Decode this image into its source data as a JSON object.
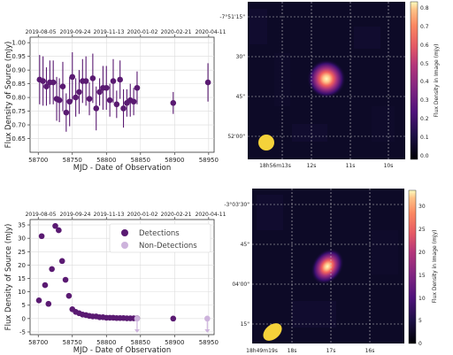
{
  "colors": {
    "detection": "#5a1a72",
    "nondetection": "#cdb3dc",
    "grid": "#dcdcdc",
    "beam": "#f5d23a"
  },
  "lightcurves": {
    "top_axis_dates": [
      "2019-08-05",
      "2019-09-24",
      "2019-11-13",
      "2020-01-02",
      "2020-02-21",
      "2020-04-11"
    ],
    "xlabel": "MJD - Date of Observation",
    "ylabel": "Flux Density of Source (mJy)"
  },
  "legend": {
    "detections": "Detections",
    "non_detections": "Non-Detections"
  },
  "images": {
    "colorbar_label": "Flux Density in Image (mJy)",
    "top": {
      "dec_ticks": [
        "-7°51'15\"",
        "30\"",
        "45\"",
        "52'00\""
      ],
      "ra_ticks": [
        "18h56m13s",
        "12s",
        "11s",
        "10s"
      ],
      "cbar_ticks": [
        "0.0",
        "0.1",
        "0.2",
        "0.3",
        "0.4",
        "0.5",
        "0.6",
        "0.7",
        "0.8"
      ]
    },
    "bottom": {
      "dec_ticks": [
        "-3°03'30\"",
        "45\"",
        "04'00\"",
        "15\""
      ],
      "ra_ticks": [
        "18h49m19s",
        "18s",
        "17s",
        "16s"
      ],
      "cbar_ticks": [
        "0",
        "5",
        "10",
        "15",
        "20",
        "25",
        "30"
      ]
    }
  },
  "chart_data": [
    {
      "type": "scatter",
      "xlabel": "MJD - Date of Observation",
      "ylabel": "Flux Density of Source (mJy)",
      "xlim": [
        58688,
        58958
      ],
      "ylim": [
        0.6,
        1.02
      ],
      "xticks": [
        58700,
        58750,
        58800,
        58850,
        58900,
        58950
      ],
      "yticks": [
        0.65,
        0.7,
        0.75,
        0.8,
        0.85,
        0.9,
        0.95,
        1.0
      ],
      "grid": true,
      "series": [
        {
          "x": [
            58702,
            58707,
            58712,
            58717,
            58722,
            58727,
            58731,
            58736,
            58741,
            58746,
            58750,
            58755,
            58760,
            58765,
            58770,
            58775,
            58780,
            58785,
            58790,
            58795,
            58800,
            58805,
            58810,
            58815,
            58820,
            58825,
            58830,
            58835,
            58840,
            58845,
            58898,
            58949
          ],
          "y": [
            0.865,
            0.86,
            0.84,
            0.855,
            0.855,
            0.795,
            0.79,
            0.84,
            0.745,
            0.785,
            0.875,
            0.8,
            0.82,
            0.86,
            0.86,
            0.795,
            0.87,
            0.76,
            0.82,
            0.835,
            0.835,
            0.79,
            0.86,
            0.775,
            0.865,
            0.76,
            0.78,
            0.79,
            0.785,
            0.835,
            0.78,
            0.855
          ],
          "err": [
            0.09,
            0.09,
            0.07,
            0.08,
            0.08,
            0.08,
            0.08,
            0.09,
            0.07,
            0.09,
            0.09,
            0.07,
            0.08,
            0.08,
            0.09,
            0.06,
            0.09,
            0.08,
            0.05,
            0.08,
            0.08,
            0.06,
            0.08,
            0.05,
            0.07,
            0.07,
            0.05,
            0.06,
            0.05,
            0.06,
            0.04,
            0.07
          ]
        }
      ]
    },
    {
      "type": "scatter",
      "xlabel": "MJD - Date of Observation",
      "ylabel": "Flux Density of Source (mJy)",
      "xlim": [
        58688,
        58958
      ],
      "ylim": [
        -6,
        37
      ],
      "xticks": [
        58700,
        58750,
        58800,
        58850,
        58900,
        58950
      ],
      "yticks": [
        -5,
        0,
        5,
        10,
        15,
        20,
        25,
        30,
        35
      ],
      "grid": true,
      "legend": "top-right",
      "series": [
        {
          "name": "Detections",
          "x": [
            58701,
            58705,
            58710,
            58715,
            58720,
            58725,
            58730,
            58735,
            58740,
            58745,
            58750,
            58755,
            58760,
            58765,
            58770,
            58775,
            58780,
            58785,
            58790,
            58795,
            58800,
            58805,
            58810,
            58815,
            58820,
            58825,
            58830,
            58835,
            58840,
            58845,
            58898
          ],
          "y": [
            6.8,
            30.8,
            12.5,
            5.5,
            18.5,
            34.6,
            33.0,
            21.5,
            14.5,
            8.5,
            3.5,
            2.5,
            2.0,
            1.5,
            1.3,
            1.0,
            0.8,
            0.8,
            0.5,
            0.5,
            0.3,
            0.3,
            0.3,
            0.2,
            0.2,
            0.2,
            0.1,
            0.1,
            0.1,
            0.1,
            0.0
          ]
        },
        {
          "name": "Non-Detections",
          "x": [
            58845,
            58948
          ],
          "y": [
            0.0,
            0.0
          ]
        }
      ]
    }
  ]
}
